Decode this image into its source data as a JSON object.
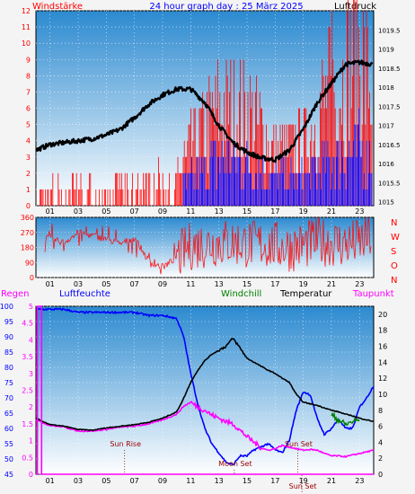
{
  "header": {
    "left_title": "Windstärke",
    "title": "24 hour graph day : 25 März 2025",
    "right_title": "Luftdruck"
  },
  "labels": {
    "regen": "Regen",
    "luftfeuchte": "Luftfeuchte",
    "windchill": "Windchill",
    "temperatur": "Temperatur",
    "taupunkt": "Taupunkt"
  },
  "colors": {
    "wind": "#ff0000",
    "gust": "#0000ff",
    "pressure": "#000000",
    "humidity": "#0000ff",
    "temperature": "#000000",
    "dewpoint": "#ff00ff",
    "windchill": "#008000",
    "rain": "#ff00ff",
    "direction": "#ff0000",
    "events": "#990000"
  },
  "chart_data": [
    {
      "type": "line",
      "name": "wind-pressure",
      "x_ticks": [
        "01",
        "03",
        "05",
        "07",
        "09",
        "11",
        "13",
        "15",
        "17",
        "19",
        "21",
        "23"
      ],
      "y_left": {
        "ticks": [
          0,
          1,
          2,
          3,
          4,
          5,
          6,
          7,
          8,
          9,
          10,
          11,
          12
        ],
        "ylim": [
          0,
          12
        ]
      },
      "y_right": {
        "ticks": [
          "1015",
          "1015.5",
          "1016",
          "1016.5",
          "1017",
          "1017.5",
          "1018",
          "1018.5",
          "1019",
          "1019.5"
        ],
        "ylim": [
          1014.9,
          1020
        ]
      },
      "series": [
        {
          "key": "pressure",
          "axis": "right",
          "x": [
            0,
            1,
            2,
            3,
            4,
            5,
            6,
            7,
            8,
            9,
            10,
            11,
            12,
            13,
            14,
            15,
            16,
            17,
            18,
            19,
            20,
            21,
            22,
            23,
            24
          ],
          "y": [
            1016.35,
            1016.5,
            1016.55,
            1016.6,
            1016.65,
            1016.75,
            1016.9,
            1017.2,
            1017.55,
            1017.8,
            1017.95,
            1017.95,
            1017.6,
            1017.0,
            1016.55,
            1016.3,
            1016.15,
            1016.1,
            1016.35,
            1016.9,
            1017.6,
            1018.1,
            1018.6,
            1018.65,
            1018.6
          ]
        },
        {
          "key": "wind",
          "axis": "left",
          "x": [
            0,
            1,
            2,
            3,
            4,
            5,
            6,
            7,
            8,
            9,
            10,
            11,
            12,
            13,
            14,
            15,
            16,
            17,
            18,
            19,
            20,
            21,
            22,
            23,
            24
          ],
          "y": [
            0.5,
            0.8,
            1,
            1,
            1,
            0.8,
            1,
            1,
            1.2,
            1.5,
            1.5,
            3,
            4,
            5,
            5,
            5,
            4,
            3,
            3,
            3,
            5,
            6,
            7,
            8,
            6
          ]
        },
        {
          "key": "gust",
          "axis": "left",
          "x": [
            0,
            1,
            2,
            3,
            4,
            5,
            6,
            7,
            8,
            9,
            10,
            11,
            12,
            13,
            14,
            15,
            16,
            17,
            18,
            19,
            20,
            21,
            22,
            23,
            24
          ],
          "y": [
            0.3,
            0.5,
            0.5,
            0.5,
            0.5,
            0.5,
            0.5,
            0.5,
            0.6,
            0.8,
            0.8,
            1.5,
            2,
            2.5,
            2.5,
            2.5,
            2,
            1.5,
            1.5,
            1.5,
            2,
            2.5,
            3,
            3,
            2.5
          ]
        }
      ]
    },
    {
      "type": "line",
      "name": "wind-direction",
      "x_ticks": [
        "01",
        "03",
        "05",
        "07",
        "09",
        "11",
        "13",
        "15",
        "17",
        "19",
        "21",
        "23"
      ],
      "y_left": {
        "ticks": [
          "0",
          "90",
          "180",
          "270",
          "360"
        ],
        "ylim": [
          0,
          360
        ]
      },
      "y_right": {
        "ticks": [
          "N",
          "W",
          "S",
          "O",
          "N"
        ]
      },
      "series": [
        {
          "key": "direction",
          "x": [
            0,
            1,
            2,
            3,
            4,
            5,
            6,
            7,
            8,
            9,
            10,
            11,
            12,
            13,
            14,
            15,
            16,
            17,
            18,
            19,
            20,
            21,
            22,
            23,
            24
          ],
          "y": [
            260,
            230,
            210,
            270,
            250,
            230,
            200,
            240,
            100,
            60,
            120,
            190,
            200,
            210,
            210,
            200,
            200,
            190,
            180,
            190,
            220,
            210,
            200,
            210,
            250
          ]
        }
      ]
    },
    {
      "type": "line",
      "name": "humidity-temperature",
      "x_ticks": [
        "01",
        "03",
        "05",
        "07",
        "09",
        "11",
        "13",
        "15",
        "17",
        "19",
        "21",
        "23"
      ],
      "y_humidity": {
        "ticks": [
          45,
          50,
          55,
          60,
          65,
          70,
          75,
          80,
          85,
          90,
          95,
          100
        ],
        "ylim": [
          45,
          100
        ]
      },
      "y_rain": {
        "ticks": [
          "0",
          "0.5",
          "1",
          "1.5",
          "2",
          "2.5",
          "3",
          "3.5",
          "4",
          "4.5",
          "5"
        ],
        "ylim": [
          0,
          5
        ]
      },
      "y_temp": {
        "ticks": [
          0,
          2,
          4,
          6,
          8,
          10,
          12,
          14,
          16,
          18,
          20
        ],
        "ylim": [
          0,
          21
        ]
      },
      "series": [
        {
          "key": "humidity",
          "axis": "humidity",
          "x": [
            0,
            1,
            2,
            3,
            4,
            5,
            6,
            7,
            8,
            9,
            10,
            10.5,
            11,
            11.5,
            12,
            12.5,
            13,
            13.5,
            14,
            14.5,
            15,
            15.5,
            16,
            16.5,
            17,
            17.5,
            18,
            18.5,
            19,
            19.5,
            20,
            20.5,
            21,
            21.5,
            22,
            22.5,
            23,
            23.5,
            24
          ],
          "y": [
            99,
            99,
            99,
            98,
            98,
            98,
            98,
            98,
            97,
            97,
            96,
            90,
            78,
            68,
            60,
            55,
            52,
            49,
            48,
            51,
            51,
            53,
            54,
            55,
            53,
            52,
            56,
            66,
            72,
            71,
            63,
            58,
            60,
            63,
            60,
            60,
            67,
            70,
            74
          ]
        },
        {
          "key": "temperature",
          "axis": "temp",
          "x": [
            0,
            1,
            2,
            3,
            4,
            5,
            6,
            7,
            8,
            9,
            10,
            10.5,
            11,
            11.5,
            12,
            12.5,
            13,
            13.5,
            14,
            14.5,
            15,
            15.5,
            16,
            16.5,
            17,
            17.5,
            18,
            18.5,
            19,
            19.5,
            20,
            20.5,
            21,
            21.5,
            22,
            22.5,
            23,
            23.5,
            24
          ],
          "y": [
            7,
            6.2,
            6,
            5.6,
            5.5,
            5.8,
            6,
            6.2,
            6.5,
            7,
            7.8,
            9.5,
            11.5,
            13,
            14.2,
            15,
            15.5,
            16,
            17,
            15.8,
            14.5,
            14,
            13.5,
            13,
            12.6,
            12,
            11.5,
            10,
            9,
            8.8,
            8.6,
            8.3,
            8,
            7.8,
            7.5,
            7.3,
            7,
            6.8,
            6.6
          ]
        },
        {
          "key": "dewpoint",
          "axis": "temp",
          "x": [
            0,
            1,
            2,
            3,
            4,
            5,
            6,
            7,
            8,
            9,
            10,
            10.5,
            11,
            11.5,
            12,
            12.5,
            13,
            13.5,
            14,
            14.5,
            15,
            15.5,
            16,
            16.5,
            17,
            17.5,
            18,
            18.5,
            19,
            19.5,
            20,
            20.5,
            21,
            21.5,
            22,
            22.5,
            23,
            23.5,
            24
          ],
          "y": [
            6.8,
            6.1,
            5.9,
            5.4,
            5.4,
            5.6,
            5.9,
            6,
            6.3,
            6.8,
            7.5,
            8.5,
            9,
            8.4,
            8,
            7.4,
            7,
            6.6,
            6.3,
            5.5,
            4.7,
            4,
            3.3,
            3,
            3.2,
            3.6,
            3.4,
            3.2,
            3,
            3.1,
            3,
            2.6,
            2.3,
            2.3,
            2.2,
            2.4,
            2.6,
            2.8,
            3
          ]
        },
        {
          "key": "windchill",
          "axis": "temp",
          "x": [
            21,
            21.5,
            22,
            22.5,
            23
          ],
          "y": [
            7.4,
            6.8,
            6.2,
            6.6,
            6.8
          ]
        },
        {
          "key": "rain",
          "axis": "rain",
          "x": [
            0,
            0.1,
            0.1,
            0.4,
            0.4,
            24
          ],
          "y": [
            0,
            0,
            5,
            5,
            0,
            0
          ]
        }
      ],
      "events": [
        {
          "label": "Sun Rise",
          "x": 6.3
        },
        {
          "label": "Moon Set",
          "x": 14.1
        },
        {
          "label": "Sun Set",
          "x": 18.6
        },
        {
          "label": "Sun Set",
          "x": 18.9
        }
      ]
    }
  ]
}
